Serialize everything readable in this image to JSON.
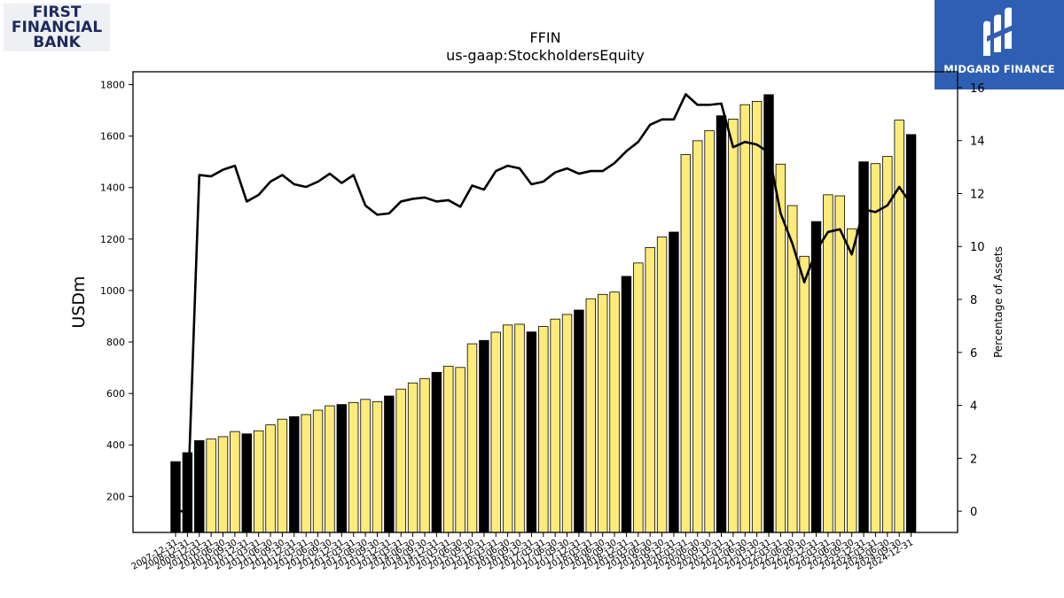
{
  "logos": {
    "left": {
      "line1": "FIRST",
      "line2": "FINANCIAL",
      "line3": "BANK"
    },
    "right": {
      "name": "MIDGARD FINANCE"
    }
  },
  "colors": {
    "bar_q4": "#000000",
    "bar_other": "#ffeb7a",
    "line": "#000000"
  },
  "chart_data": {
    "type": "bar",
    "title": "FFIN",
    "subtitle": "us-gaap:StockholdersEquity",
    "ylabel": "USDm",
    "y2label": "Percentage of Assets",
    "ylim": [
      60,
      1850
    ],
    "y2lim": [
      -0.8,
      16.6
    ],
    "yticks": [
      200,
      400,
      600,
      800,
      1000,
      1200,
      1400,
      1600,
      1800
    ],
    "y2ticks": [
      0,
      2,
      4,
      6,
      8,
      10,
      12,
      14,
      16
    ],
    "x": [
      "2007-12-31",
      "2008-12-31",
      "2009-12-31",
      "2010-03-31",
      "2010-06-30",
      "2010-09-30",
      "2010-12-31",
      "2011-03-31",
      "2011-06-30",
      "2011-09-30",
      "2011-12-31",
      "2012-03-31",
      "2012-06-30",
      "2012-09-30",
      "2012-12-31",
      "2013-03-31",
      "2013-06-30",
      "2013-09-30",
      "2013-12-31",
      "2014-03-31",
      "2014-06-30",
      "2014-09-30",
      "2014-12-31",
      "2015-03-31",
      "2015-06-30",
      "2015-09-30",
      "2015-12-31",
      "2016-03-31",
      "2016-06-30",
      "2016-09-30",
      "2016-12-31",
      "2017-03-31",
      "2017-06-30",
      "2017-09-30",
      "2017-12-31",
      "2018-03-31",
      "2018-06-30",
      "2018-09-30",
      "2018-12-31",
      "2019-03-31",
      "2019-06-30",
      "2019-09-30",
      "2019-12-31",
      "2020-03-31",
      "2020-06-30",
      "2020-09-30",
      "2020-12-31",
      "2021-03-31",
      "2021-06-30",
      "2021-09-30",
      "2021-12-31",
      "2022-03-31",
      "2022-06-30",
      "2022-09-30",
      "2022-12-31",
      "2023-03-31",
      "2023-06-30",
      "2023-09-30",
      "2023-12-31",
      "2024-03-31",
      "2024-06-30",
      "2024-09-30",
      "2024-12-31"
    ],
    "x_tick_labels": [
      "2007-12-31",
      "2008-12-31",
      "2009-12-31",
      "2010-03-31",
      "2010-06-30",
      "2010-09-30",
      "2010-12-31",
      "2011-03-31",
      "2011-06-30",
      "2011-09-30",
      "2011-12-31",
      "2012-03-31",
      "2012-06-30",
      "2012-09-30",
      "2012-12-31",
      "2013-03-31",
      "2013-06-30",
      "2013-09-30",
      "2013-12-31",
      "2014-03-31",
      "2014-06-30",
      "2014-09-30",
      "2014-12-31",
      "2015-03-31",
      "2015-06-30",
      "2015-09-30",
      "2015-12-31",
      "2016-03-31",
      "2016-06-30",
      "2016-09-30",
      "2016-12-31",
      "2017-03-31",
      "2017-06-30",
      "2017-09-30",
      "2017-12-31",
      "2018-03-31",
      "2018-06-30",
      "2018-09-30",
      "2018-12-31",
      "2019-03-31",
      "2019-06-30",
      "2019-09-30",
      "2019-12-31",
      "2020-03-31",
      "2020-06-30",
      "2020-09-30",
      "2020-12-31",
      "2021-03-31",
      "2021-06-30",
      "2021-09-30",
      "2021-12-31",
      "2022-03-31",
      "2022-06-30",
      "2022-09-30",
      "2022-12-31",
      "2023-03-31",
      "2023-06-30",
      "2023-09-30",
      "2023-12-31",
      "2024-03-31",
      "2024-06-30",
      "2024-09-30",
      "2024-12-31"
    ],
    "series": [
      {
        "values": [
          335,
          370,
          417,
          423,
          432,
          452,
          443,
          455,
          478,
          500,
          510,
          518,
          535,
          552,
          557,
          565,
          577,
          568,
          590,
          617,
          641,
          658,
          682,
          706,
          701,
          793,
          806,
          838,
          866,
          869,
          839,
          860,
          889,
          907,
          924,
          968,
          985,
          994,
          1055,
          1107,
          1167,
          1208,
          1227,
          1528,
          1582,
          1621,
          1679,
          1666,
          1722,
          1735,
          1761,
          1491,
          1330,
          1133,
          1268,
          1372,
          1368,
          1240,
          1500,
          1493,
          1521,
          1662,
          1606
        ]
      },
      {
        "values": [
          0.0,
          0.0,
          12.7,
          12.65,
          12.9,
          13.05,
          11.7,
          11.95,
          12.45,
          12.7,
          12.35,
          12.25,
          12.45,
          12.75,
          12.4,
          12.7,
          11.55,
          11.2,
          11.25,
          11.7,
          11.8,
          11.85,
          11.7,
          11.75,
          11.5,
          12.3,
          12.15,
          12.85,
          13.05,
          12.95,
          12.35,
          12.45,
          12.8,
          12.95,
          12.75,
          12.85,
          12.85,
          13.15,
          13.6,
          13.95,
          14.6,
          14.8,
          14.8,
          15.75,
          15.35,
          15.35,
          15.4,
          13.75,
          13.95,
          13.85,
          13.55,
          11.25,
          10.1,
          8.65,
          9.85,
          10.55,
          10.65,
          9.7,
          11.4,
          11.3,
          11.55,
          12.25,
          11.6
        ]
      }
    ]
  }
}
